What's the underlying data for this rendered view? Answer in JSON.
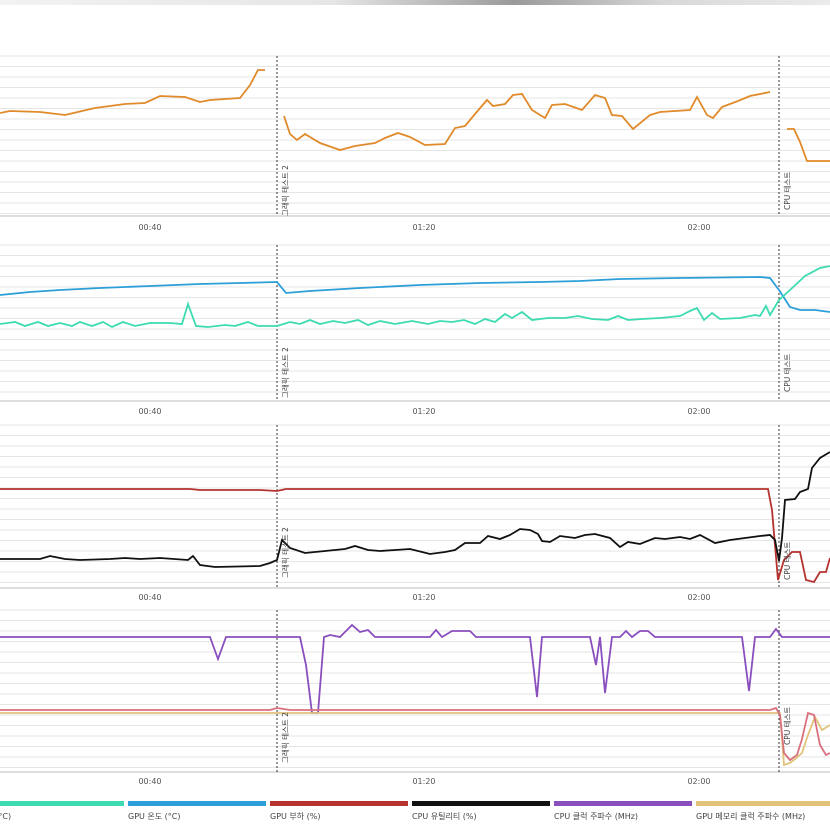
{
  "markers": {
    "marker_1": "그래픽 테스트 2",
    "marker_2": "CPU 테스트"
  },
  "time_ticks": [
    "00:40",
    "01:20",
    "02:00"
  ],
  "legend": [
    {
      "label": "온도 (°C)",
      "color": "#3ddbb1"
    },
    {
      "label": "GPU 온도 (°C)",
      "color": "#2c9ed8"
    },
    {
      "label": "GPU 부하 (%)",
      "color": "#b5332f"
    },
    {
      "label": "CPU 유틸리티 (%)",
      "color": "#111111"
    },
    {
      "label": "CPU 클럭 주파수 (MHz)",
      "color": "#8a4fbf"
    },
    {
      "label": "GPU 메모리 클럭 주파수 (MHz)",
      "color": "#e0c27a"
    }
  ],
  "chart_data": [
    {
      "type": "line",
      "x_axis": [
        "00:40",
        "01:20",
        "02:00"
      ],
      "series": [
        {
          "name": "",
          "color": "#e08a2a"
        }
      ]
    },
    {
      "type": "line",
      "x_axis": [
        "00:40",
        "01:20",
        "02:00"
      ],
      "series": [
        {
          "name": "GPU 온도 (°C)",
          "color": "#2c9ed8"
        },
        {
          "name": "온도 (°C)",
          "color": "#3ddbb1"
        }
      ]
    },
    {
      "type": "line",
      "x_axis": [
        "00:40",
        "01:20",
        "02:00"
      ],
      "series": [
        {
          "name": "GPU 부하 (%)",
          "color": "#b5332f"
        },
        {
          "name": "CPU 유틸리티 (%)",
          "color": "#111111"
        }
      ]
    },
    {
      "type": "line",
      "x_axis": [
        "00:40",
        "01:20",
        "02:00"
      ],
      "series": [
        {
          "name": "CPU 클럭 주파수 (MHz)",
          "color": "#8a4fbf"
        },
        {
          "name": "GPU 메모리 클럭 주파수 (MHz)",
          "color": "#e0c27a"
        },
        {
          "name": "",
          "color": "#d9707e"
        }
      ]
    }
  ]
}
